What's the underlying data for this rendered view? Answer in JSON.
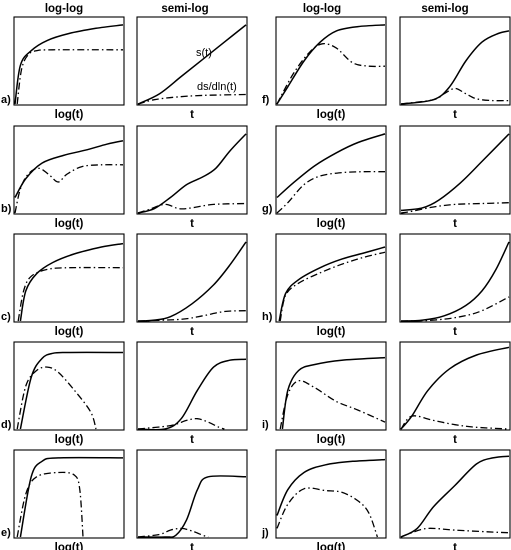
{
  "headers": {
    "log_log": "log-log",
    "semi_log": "semi-log"
  },
  "annotations": {
    "s": "s(t)",
    "ds": "ds/dln(t)"
  },
  "xlabels": {
    "log": "log(t)",
    "semi": "t"
  },
  "rows": [
    {
      "left_letter": "a)",
      "right_letter": "f)"
    },
    {
      "left_letter": "b)",
      "right_letter": "g)"
    },
    {
      "left_letter": "c)",
      "right_letter": "h)"
    },
    {
      "left_letter": "d)",
      "right_letter": "i)"
    },
    {
      "left_letter": "e)",
      "right_letter": "j)"
    }
  ],
  "curves": {
    "a": {
      "log": {
        "s": [
          [
            0,
            0
          ],
          [
            0.05,
            0.45
          ],
          [
            0.15,
            0.62
          ],
          [
            0.3,
            0.74
          ],
          [
            0.5,
            0.82
          ],
          [
            0.75,
            0.88
          ],
          [
            1,
            0.92
          ]
        ],
        "d": [
          [
            0.02,
            0
          ],
          [
            0.06,
            0.4
          ],
          [
            0.12,
            0.57
          ],
          [
            0.2,
            0.62
          ],
          [
            0.35,
            0.63
          ],
          [
            1,
            0.63
          ]
        ]
      },
      "semi": {
        "s": [
          [
            0,
            0
          ],
          [
            0.2,
            0.12
          ],
          [
            0.4,
            0.32
          ],
          [
            0.6,
            0.52
          ],
          [
            0.8,
            0.72
          ],
          [
            1,
            0.92
          ]
        ],
        "d": [
          [
            0,
            0
          ],
          [
            0.15,
            0.05
          ],
          [
            0.35,
            0.08
          ],
          [
            0.6,
            0.1
          ],
          [
            1,
            0.11
          ]
        ]
      }
    },
    "b": {
      "log": {
        "s": [
          [
            0,
            0.18
          ],
          [
            0.1,
            0.4
          ],
          [
            0.25,
            0.58
          ],
          [
            0.45,
            0.67
          ],
          [
            0.65,
            0.73
          ],
          [
            0.85,
            0.8
          ],
          [
            1,
            0.84
          ]
        ],
        "d": [
          [
            0,
            0
          ],
          [
            0.05,
            0.28
          ],
          [
            0.12,
            0.45
          ],
          [
            0.22,
            0.52
          ],
          [
            0.32,
            0.44
          ],
          [
            0.4,
            0.36
          ],
          [
            0.48,
            0.45
          ],
          [
            0.62,
            0.54
          ],
          [
            0.8,
            0.56
          ],
          [
            1,
            0.56
          ]
        ]
      },
      "semi": {
        "s": [
          [
            0,
            0
          ],
          [
            0.15,
            0.05
          ],
          [
            0.3,
            0.18
          ],
          [
            0.45,
            0.33
          ],
          [
            0.6,
            0.42
          ],
          [
            0.72,
            0.52
          ],
          [
            0.85,
            0.72
          ],
          [
            1,
            0.92
          ]
        ],
        "d": [
          [
            0,
            0
          ],
          [
            0.1,
            0.04
          ],
          [
            0.25,
            0.1
          ],
          [
            0.38,
            0.05
          ],
          [
            0.5,
            0.06
          ],
          [
            0.7,
            0.1
          ],
          [
            1,
            0.11
          ]
        ]
      }
    },
    "c": {
      "log": {
        "s": [
          [
            0.05,
            0
          ],
          [
            0.1,
            0.35
          ],
          [
            0.2,
            0.55
          ],
          [
            0.35,
            0.68
          ],
          [
            0.55,
            0.78
          ],
          [
            0.8,
            0.86
          ],
          [
            1,
            0.9
          ]
        ],
        "d": [
          [
            0.03,
            0
          ],
          [
            0.08,
            0.35
          ],
          [
            0.15,
            0.52
          ],
          [
            0.3,
            0.6
          ],
          [
            0.5,
            0.62
          ],
          [
            1,
            0.62
          ]
        ]
      },
      "semi": {
        "s": [
          [
            0,
            0
          ],
          [
            0.15,
            0.01
          ],
          [
            0.3,
            0.05
          ],
          [
            0.5,
            0.2
          ],
          [
            0.7,
            0.42
          ],
          [
            0.85,
            0.65
          ],
          [
            1,
            0.92
          ]
        ],
        "d": [
          [
            0,
            0
          ],
          [
            0.4,
            0.02
          ],
          [
            0.6,
            0.06
          ],
          [
            0.8,
            0.11
          ],
          [
            1,
            0.12
          ]
        ]
      }
    },
    "d": {
      "log": {
        "s": [
          [
            0.05,
            0
          ],
          [
            0.15,
            0.6
          ],
          [
            0.25,
            0.82
          ],
          [
            0.35,
            0.88
          ],
          [
            0.5,
            0.89
          ],
          [
            1,
            0.89
          ]
        ],
        "d": [
          [
            0.02,
            0
          ],
          [
            0.1,
            0.5
          ],
          [
            0.2,
            0.68
          ],
          [
            0.3,
            0.72
          ],
          [
            0.4,
            0.66
          ],
          [
            0.55,
            0.45
          ],
          [
            0.7,
            0.2
          ],
          [
            0.75,
            0
          ]
        ]
      },
      "semi": {
        "s": [
          [
            0,
            0
          ],
          [
            0.25,
            0
          ],
          [
            0.4,
            0.12
          ],
          [
            0.55,
            0.45
          ],
          [
            0.7,
            0.72
          ],
          [
            0.85,
            0.8
          ],
          [
            1,
            0.81
          ]
        ],
        "d": [
          [
            0,
            0
          ],
          [
            0.3,
            0.04
          ],
          [
            0.45,
            0.1
          ],
          [
            0.55,
            0.12
          ],
          [
            0.65,
            0.08
          ],
          [
            0.75,
            0.02
          ],
          [
            0.8,
            0
          ]
        ]
      }
    },
    "e": {
      "log": {
        "s": [
          [
            0.05,
            0
          ],
          [
            0.15,
            0.7
          ],
          [
            0.25,
            0.88
          ],
          [
            0.4,
            0.92
          ],
          [
            1,
            0.92
          ]
        ],
        "d": [
          [
            0.02,
            0
          ],
          [
            0.1,
            0.5
          ],
          [
            0.2,
            0.7
          ],
          [
            0.4,
            0.75
          ],
          [
            0.55,
            0.72
          ],
          [
            0.6,
            0.55
          ],
          [
            0.63,
            0
          ]
        ]
      },
      "semi": {
        "s": [
          [
            0,
            0
          ],
          [
            0.25,
            0
          ],
          [
            0.35,
            0.02
          ],
          [
            0.45,
            0.2
          ],
          [
            0.55,
            0.55
          ],
          [
            0.65,
            0.7
          ],
          [
            1,
            0.7
          ]
        ],
        "d": [
          [
            0,
            0
          ],
          [
            0.2,
            0.03
          ],
          [
            0.3,
            0.08
          ],
          [
            0.4,
            0.1
          ],
          [
            0.5,
            0.07
          ],
          [
            0.6,
            0.02
          ],
          [
            0.65,
            0
          ]
        ]
      }
    },
    "f": {
      "log": {
        "s": [
          [
            0,
            0
          ],
          [
            0.1,
            0.2
          ],
          [
            0.25,
            0.5
          ],
          [
            0.4,
            0.72
          ],
          [
            0.55,
            0.85
          ],
          [
            0.75,
            0.9
          ],
          [
            1,
            0.92
          ]
        ],
        "d": [
          [
            0,
            0
          ],
          [
            0.15,
            0.35
          ],
          [
            0.3,
            0.6
          ],
          [
            0.42,
            0.7
          ],
          [
            0.55,
            0.65
          ],
          [
            0.7,
            0.48
          ],
          [
            0.85,
            0.44
          ],
          [
            1,
            0.44
          ]
        ]
      },
      "semi": {
        "s": [
          [
            0,
            0
          ],
          [
            0.3,
            0.05
          ],
          [
            0.45,
            0.2
          ],
          [
            0.6,
            0.5
          ],
          [
            0.75,
            0.72
          ],
          [
            0.9,
            0.82
          ],
          [
            1,
            0.85
          ]
        ],
        "d": [
          [
            0,
            0
          ],
          [
            0.3,
            0.05
          ],
          [
            0.4,
            0.12
          ],
          [
            0.5,
            0.18
          ],
          [
            0.6,
            0.12
          ],
          [
            0.7,
            0.06
          ],
          [
            0.85,
            0.04
          ],
          [
            1,
            0.04
          ]
        ]
      }
    },
    "g": {
      "log": {
        "s": [
          [
            0,
            0.18
          ],
          [
            0.15,
            0.35
          ],
          [
            0.35,
            0.55
          ],
          [
            0.55,
            0.7
          ],
          [
            0.75,
            0.82
          ],
          [
            1,
            0.92
          ]
        ],
        "d": [
          [
            0,
            0
          ],
          [
            0.1,
            0.12
          ],
          [
            0.25,
            0.33
          ],
          [
            0.4,
            0.43
          ],
          [
            0.6,
            0.47
          ],
          [
            0.8,
            0.48
          ],
          [
            1,
            0.48
          ]
        ]
      },
      "semi": {
        "s": [
          [
            0,
            0.03
          ],
          [
            0.2,
            0.06
          ],
          [
            0.35,
            0.15
          ],
          [
            0.55,
            0.35
          ],
          [
            0.75,
            0.6
          ],
          [
            1,
            0.92
          ]
        ],
        "d": [
          [
            0,
            0
          ],
          [
            0.1,
            0.02
          ],
          [
            0.3,
            0.07
          ],
          [
            0.5,
            0.1
          ],
          [
            0.75,
            0.11
          ],
          [
            1,
            0.12
          ]
        ]
      }
    },
    "h": {
      "log": {
        "s": [
          [
            0.02,
            0
          ],
          [
            0.08,
            0.32
          ],
          [
            0.2,
            0.48
          ],
          [
            0.4,
            0.62
          ],
          [
            0.6,
            0.72
          ],
          [
            0.8,
            0.79
          ],
          [
            1,
            0.86
          ]
        ],
        "d": [
          [
            0.03,
            0
          ],
          [
            0.08,
            0.3
          ],
          [
            0.2,
            0.44
          ],
          [
            0.4,
            0.56
          ],
          [
            0.6,
            0.66
          ],
          [
            0.8,
            0.74
          ],
          [
            1,
            0.8
          ]
        ]
      },
      "semi": {
        "s": [
          [
            0,
            0
          ],
          [
            0.2,
            0.01
          ],
          [
            0.4,
            0.06
          ],
          [
            0.6,
            0.18
          ],
          [
            0.75,
            0.35
          ],
          [
            0.88,
            0.6
          ],
          [
            1,
            0.92
          ]
        ],
        "d": [
          [
            0,
            0
          ],
          [
            0.3,
            0.01
          ],
          [
            0.55,
            0.05
          ],
          [
            0.75,
            0.12
          ],
          [
            1,
            0.28
          ]
        ]
      }
    },
    "i": {
      "log": {
        "s": [
          [
            0.05,
            0
          ],
          [
            0.1,
            0.45
          ],
          [
            0.2,
            0.68
          ],
          [
            0.35,
            0.75
          ],
          [
            0.6,
            0.8
          ],
          [
            1,
            0.83
          ]
        ],
        "d": [
          [
            0.03,
            0
          ],
          [
            0.1,
            0.4
          ],
          [
            0.2,
            0.56
          ],
          [
            0.35,
            0.48
          ],
          [
            0.55,
            0.32
          ],
          [
            0.75,
            0.22
          ],
          [
            1,
            0.08
          ]
        ]
      },
      "semi": {
        "s": [
          [
            0,
            0
          ],
          [
            0.1,
            0.15
          ],
          [
            0.25,
            0.45
          ],
          [
            0.45,
            0.7
          ],
          [
            0.7,
            0.86
          ],
          [
            1,
            0.95
          ]
        ],
        "d": [
          [
            0,
            0
          ],
          [
            0.1,
            0.15
          ],
          [
            0.3,
            0.1
          ],
          [
            0.5,
            0.05
          ],
          [
            0.7,
            0.02
          ],
          [
            1,
            0
          ]
        ]
      }
    },
    "j": {
      "log": {
        "s": [
          [
            0,
            0.25
          ],
          [
            0.1,
            0.55
          ],
          [
            0.25,
            0.75
          ],
          [
            0.45,
            0.84
          ],
          [
            0.7,
            0.88
          ],
          [
            1,
            0.9
          ]
        ],
        "d": [
          [
            0,
            0.1
          ],
          [
            0.1,
            0.38
          ],
          [
            0.25,
            0.56
          ],
          [
            0.45,
            0.54
          ],
          [
            0.6,
            0.52
          ],
          [
            0.75,
            0.42
          ],
          [
            0.85,
            0.28
          ],
          [
            0.93,
            0
          ]
        ]
      },
      "semi": {
        "s": [
          [
            0,
            0
          ],
          [
            0.15,
            0.1
          ],
          [
            0.3,
            0.35
          ],
          [
            0.5,
            0.6
          ],
          [
            0.7,
            0.85
          ],
          [
            0.85,
            0.92
          ],
          [
            1,
            0.94
          ]
        ],
        "d": [
          [
            0,
            0
          ],
          [
            0.1,
            0.05
          ],
          [
            0.25,
            0.1
          ],
          [
            0.5,
            0.08
          ],
          [
            0.8,
            0.06
          ],
          [
            1,
            0.05
          ]
        ]
      }
    }
  }
}
